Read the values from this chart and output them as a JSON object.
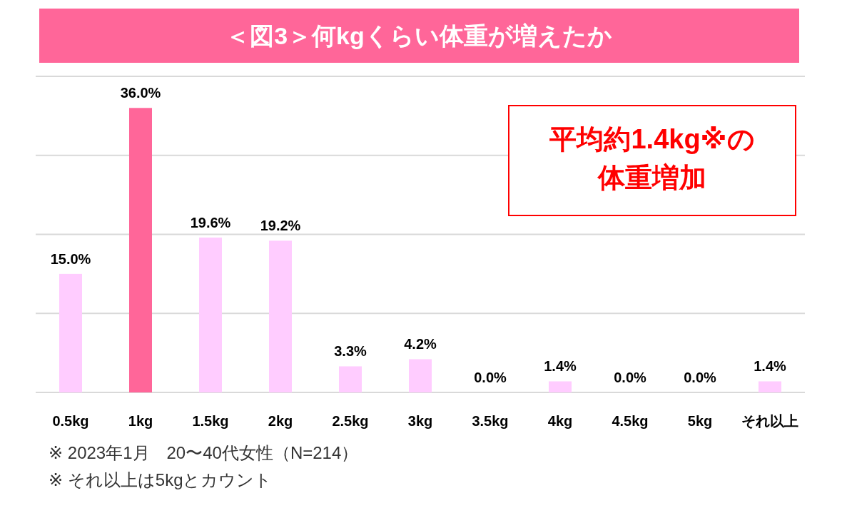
{
  "chart_data": {
    "type": "bar",
    "title": "＜図3＞何kgくらい体重が増えたか",
    "categories": [
      "0.5kg",
      "1kg",
      "1.5kg",
      "2kg",
      "2.5kg",
      "3kg",
      "3.5kg",
      "4kg",
      "4.5kg",
      "5kg",
      "それ以上"
    ],
    "values": [
      15.0,
      36.0,
      19.6,
      19.2,
      3.3,
      4.2,
      0.0,
      1.4,
      0.0,
      0.0,
      1.4
    ],
    "colors": [
      "#ffccff",
      "#ff6699",
      "#ffccff",
      "#ffccff",
      "#ffccff",
      "#ffccff",
      "#ffccff",
      "#ffccff",
      "#ffccff",
      "#ffccff",
      "#ffccff"
    ],
    "value_labels": [
      "15.0%",
      "36.0%",
      "19.6%",
      "19.2%",
      "3.3%",
      "4.2%",
      "0.0%",
      "1.4%",
      "0.0%",
      "0.0%",
      "1.4%"
    ],
    "ylim": [
      0,
      40
    ],
    "yticks": [
      {
        "value": 0,
        "label": null
      },
      {
        "value": 10,
        "label": null
      },
      {
        "value": 20,
        "label": null
      },
      {
        "value": 30,
        "label": null
      },
      {
        "value": 40,
        "label": null
      }
    ],
    "grid": "y",
    "tick_labels": "x",
    "annotations": [
      "平均約1.4kg※の",
      "体重増加",
      "※ 2023年1月　20〜40代女性（N=214）",
      "※ それ以上は5kgとカウント"
    ]
  }
}
